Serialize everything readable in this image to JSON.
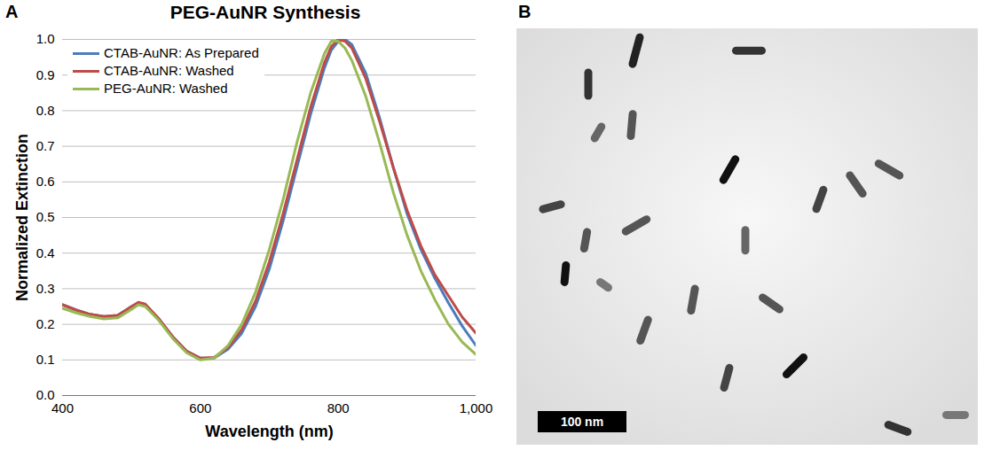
{
  "chart_data": {
    "type": "line",
    "title": "PEG-AuNR Synthesis",
    "xlabel": "Wavelength (nm)",
    "ylabel": "Normalized Extinction",
    "x": [
      400,
      420,
      440,
      460,
      480,
      500,
      510,
      520,
      540,
      560,
      580,
      600,
      620,
      640,
      660,
      680,
      700,
      720,
      740,
      760,
      780,
      790,
      800,
      810,
      820,
      840,
      860,
      880,
      900,
      920,
      940,
      960,
      980,
      1000
    ],
    "series": [
      {
        "name": "CTAB-AuNR: As Prepared",
        "color": "#4a7ebb",
        "values": [
          0.255,
          0.24,
          0.228,
          0.222,
          0.225,
          0.25,
          0.26,
          0.255,
          0.215,
          0.165,
          0.125,
          0.105,
          0.105,
          0.13,
          0.175,
          0.25,
          0.355,
          0.49,
          0.64,
          0.79,
          0.92,
          0.97,
          0.995,
          1.0,
          0.985,
          0.905,
          0.78,
          0.64,
          0.51,
          0.41,
          0.33,
          0.26,
          0.195,
          0.14
        ]
      },
      {
        "name": "CTAB-AuNR: Washed",
        "color": "#be4b48",
        "values": [
          0.255,
          0.24,
          0.228,
          0.222,
          0.225,
          0.25,
          0.262,
          0.257,
          0.215,
          0.165,
          0.125,
          0.105,
          0.107,
          0.135,
          0.185,
          0.265,
          0.375,
          0.51,
          0.66,
          0.81,
          0.935,
          0.98,
          1.0,
          0.995,
          0.975,
          0.89,
          0.77,
          0.64,
          0.52,
          0.42,
          0.34,
          0.28,
          0.22,
          0.175
        ]
      },
      {
        "name": "PEG-AuNR: Washed",
        "color": "#98b954",
        "values": [
          0.245,
          0.232,
          0.222,
          0.215,
          0.218,
          0.242,
          0.255,
          0.25,
          0.21,
          0.16,
          0.12,
          0.1,
          0.105,
          0.14,
          0.2,
          0.29,
          0.41,
          0.55,
          0.71,
          0.85,
          0.96,
          0.995,
          0.995,
          0.975,
          0.94,
          0.84,
          0.71,
          0.57,
          0.45,
          0.35,
          0.27,
          0.2,
          0.15,
          0.115
        ]
      }
    ],
    "xlim": [
      400,
      1000
    ],
    "xticks": [
      400,
      600,
      800,
      1000
    ],
    "ylim": [
      0,
      1
    ],
    "yticks": [
      0,
      0.1,
      0.2,
      0.3,
      0.4,
      0.5,
      0.6,
      0.7,
      0.8,
      0.9,
      1
    ],
    "grid": true,
    "legend": "top-left"
  },
  "panel_labels": [
    "A",
    "B"
  ],
  "image": {
    "scale_bar_label": "100 nm"
  }
}
